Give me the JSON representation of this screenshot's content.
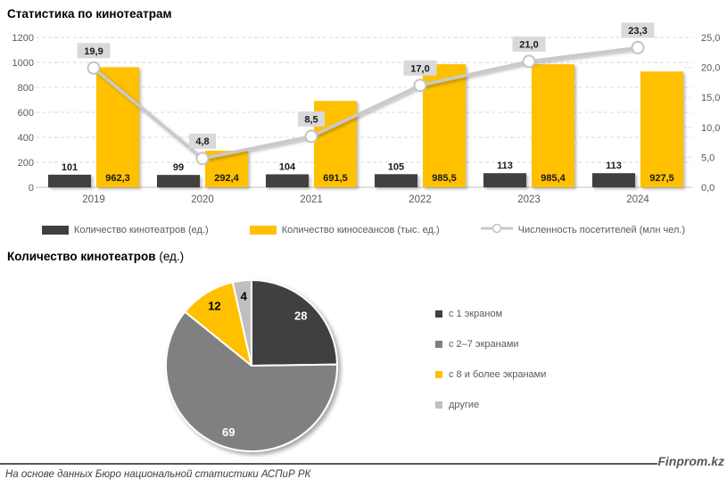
{
  "header": {
    "title": "Статистика по кинотеатрам"
  },
  "pie_header": {
    "title_bold": "Количество кинотеатров",
    "title_suffix": " (ед.)"
  },
  "footer": {
    "brand": "Finprom.kz",
    "source": "На основе данных Бюро национальной статистики АСПиР РК"
  },
  "colors": {
    "dark": "#404040",
    "yellow": "#FFC000",
    "line": "#C9C9C9",
    "marker_stroke": "#C3C3C3",
    "label_box": "#D9D9D9",
    "grid": "#D9D9D9",
    "axis_text": "#595959",
    "pie_gray": "#808080",
    "pie_light": "#BFBFBF"
  },
  "chart_data": [
    {
      "type": "bar",
      "subtype": "combo-bar-line",
      "title": "Статистика по кинотеатрам",
      "categories": [
        "2019",
        "2020",
        "2021",
        "2022",
        "2023",
        "2024"
      ],
      "series": [
        {
          "name": "Количество кинотеатров (ед.)",
          "kind": "bar",
          "axis": "left",
          "color": "#404040",
          "values": [
            101,
            99,
            104,
            105,
            113,
            113
          ],
          "labels": [
            "101",
            "99",
            "104",
            "105",
            "113",
            "113"
          ]
        },
        {
          "name": "Количество киносеансов (тыс. ед.)",
          "kind": "bar",
          "axis": "left",
          "color": "#FFC000",
          "values": [
            962.3,
            292.4,
            691.5,
            985.5,
            985.4,
            927.5
          ],
          "labels": [
            "962,3",
            "292,4",
            "691,5",
            "985,5",
            "985,4",
            "927,5"
          ]
        },
        {
          "name": "Численность посетителей (млн чел.)",
          "kind": "line",
          "axis": "right",
          "color": "#C9C9C9",
          "values": [
            19.9,
            4.8,
            8.5,
            17.0,
            21.0,
            23.3
          ],
          "labels": [
            "19,9",
            "4,8",
            "8,5",
            "17,0",
            "21,0",
            "23,3"
          ]
        }
      ],
      "left_axis": {
        "min": 0,
        "max": 1200,
        "step": 200,
        "ticks": [
          "0",
          "200",
          "400",
          "600",
          "800",
          "1000",
          "1200"
        ]
      },
      "right_axis": {
        "min": 0,
        "max": 25,
        "step": 5,
        "ticks": [
          "0,0",
          "5,0",
          "10,0",
          "15,0",
          "20,0",
          "25,0"
        ]
      },
      "grid": "horizontal-dashed",
      "legend_position": "bottom"
    },
    {
      "type": "pie",
      "title": "Количество кинотеатров (ед.)",
      "labels": [
        "с 1 экраном",
        "с 2–7 экранами",
        "с 8 и более экранами",
        "другие"
      ],
      "values": [
        28,
        69,
        12,
        4
      ],
      "value_labels": [
        "28",
        "69",
        "12",
        "4"
      ],
      "colors": [
        "#404040",
        "#808080",
        "#FFC000",
        "#BFBFBF"
      ],
      "label_colors": [
        "#ffffff",
        "#ffffff",
        "#000000",
        "#000000"
      ],
      "start_angle_deg": 0,
      "direction": "clockwise",
      "legend_position": "right"
    }
  ]
}
